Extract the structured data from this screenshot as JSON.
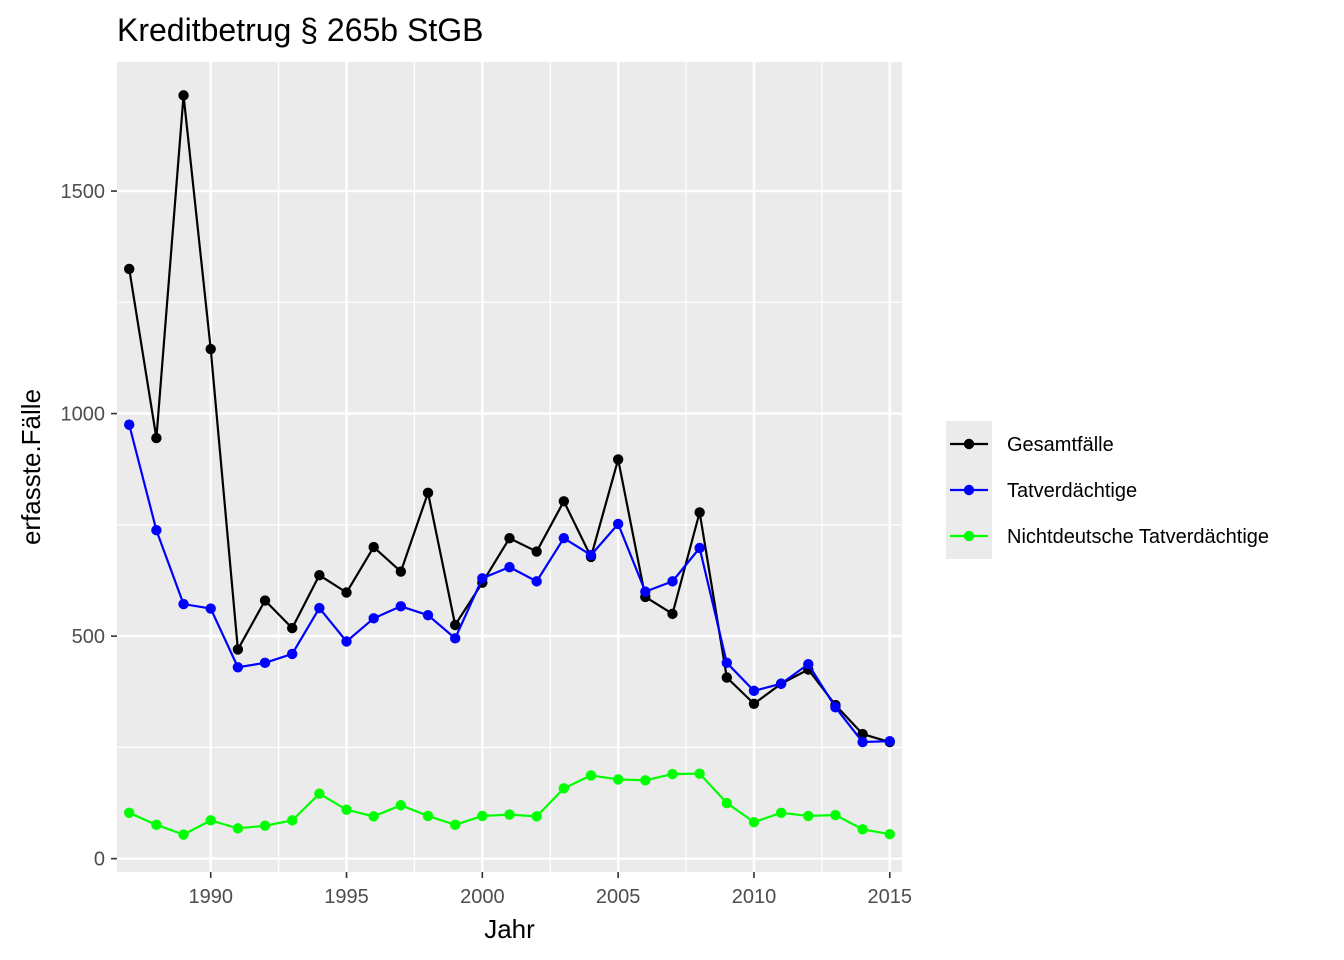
{
  "chart_data": {
    "type": "line",
    "title": "Kreditbetrug § 265b StGB",
    "xlabel": "Jahr",
    "ylabel": "erfasste.Fälle",
    "x": [
      1987,
      1988,
      1989,
      1990,
      1991,
      1992,
      1993,
      1994,
      1995,
      1996,
      1997,
      1998,
      1999,
      2000,
      2001,
      2002,
      2003,
      2004,
      2005,
      2006,
      2007,
      2008,
      2009,
      2010,
      2011,
      2012,
      2013,
      2014,
      2015
    ],
    "xlim": [
      1986.55,
      2015.45
    ],
    "ylim": [
      -30,
      1790
    ],
    "x_ticks": [
      1990,
      1995,
      2000,
      2005,
      2010,
      2015
    ],
    "x_tick_labels": [
      "1990",
      "1995",
      "2000",
      "2005",
      "2010",
      "2015"
    ],
    "y_ticks": [
      0,
      500,
      1000,
      1500
    ],
    "y_tick_labels": [
      "0",
      "500",
      "1000",
      "1500"
    ],
    "grid": true,
    "legend_position": "right",
    "series": [
      {
        "name": "Gesamtfälle",
        "color": "#000000",
        "values": [
          1325,
          945,
          1715,
          1145,
          470,
          580,
          518,
          637,
          598,
          700,
          645,
          822,
          525,
          620,
          720,
          690,
          803,
          678,
          897,
          588,
          550,
          778,
          407,
          348,
          393,
          425,
          345,
          280,
          262
        ]
      },
      {
        "name": "Tatverdächtige",
        "color": "#0000ff",
        "values": [
          975,
          738,
          572,
          562,
          430,
          440,
          460,
          563,
          488,
          540,
          567,
          547,
          495,
          630,
          655,
          623,
          720,
          682,
          752,
          600,
          623,
          698,
          440,
          377,
          393,
          437,
          340,
          262,
          264
        ]
      },
      {
        "name": "Nichtdeutsche Tatverdächtige",
        "color": "#00ff00",
        "values": [
          103,
          76,
          54,
          86,
          68,
          74,
          86,
          146,
          110,
          95,
          120,
          96,
          76,
          96,
          99,
          95,
          158,
          187,
          178,
          176,
          190,
          191,
          125,
          82,
          103,
          96,
          98,
          66,
          55
        ]
      }
    ]
  }
}
